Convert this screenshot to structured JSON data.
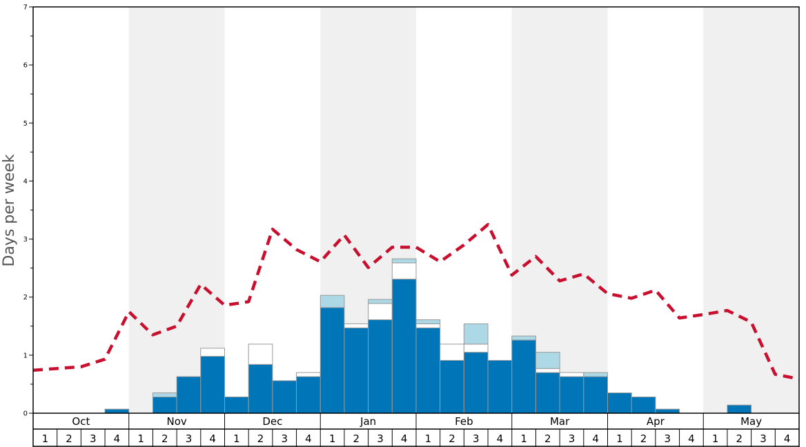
{
  "chart_data": {
    "type": "bar",
    "ylabel": "Days per week",
    "ylim": [
      0,
      7
    ],
    "y_ticks": [
      "0",
      "1",
      "2",
      "3",
      "4",
      "5",
      "6",
      "7"
    ],
    "months": [
      "Oct",
      "Nov",
      "Dec",
      "Jan",
      "Feb",
      "Mar",
      "Apr",
      "May"
    ],
    "week_labels": [
      "1",
      "2",
      "3",
      "4"
    ],
    "shaded_months": [
      "Nov",
      "Jan",
      "Mar",
      "May"
    ],
    "grid": false,
    "series": [
      {
        "values": [
          0,
          0,
          0,
          0.07,
          0,
          0.28,
          0.63,
          0.98,
          0.28,
          0.84,
          0.56,
          0.63,
          1.82,
          1.47,
          1.61,
          2.31,
          1.47,
          0.91,
          1.05,
          0.91,
          1.26,
          0.7,
          0.63,
          0.63,
          0.35,
          0.28,
          0.07,
          0,
          0,
          0.14,
          0,
          0
        ]
      },
      {
        "values": [
          0,
          0,
          0,
          0,
          0,
          0,
          0,
          0.14,
          0,
          0.35,
          0,
          0.07,
          0,
          0.07,
          0.28,
          0.28,
          0.07,
          0.28,
          0.14,
          0,
          0,
          0.07,
          0.07,
          0,
          0,
          0,
          0,
          0,
          0,
          0,
          0,
          0
        ]
      },
      {
        "values": [
          0,
          0,
          0,
          0,
          0,
          0.07,
          0,
          0,
          0,
          0,
          0,
          0,
          0.21,
          0,
          0.07,
          0.07,
          0.07,
          0,
          0.35,
          0,
          0.07,
          0.28,
          0,
          0.07,
          0,
          0,
          0,
          0,
          0,
          0,
          0,
          0
        ]
      },
      {
        "type": "line",
        "values": [
          0.74,
          0.77,
          0.8,
          0.93,
          1.75,
          1.35,
          1.5,
          2.22,
          1.86,
          1.92,
          3.17,
          2.82,
          2.61,
          3.07,
          2.51,
          2.86,
          2.86,
          2.61,
          2.9,
          3.25,
          2.38,
          2.7,
          2.28,
          2.4,
          2.06,
          1.98,
          2.12,
          1.64,
          1.7,
          1.77,
          1.57,
          0.67,
          0.59
        ]
      }
    ],
    "colors": {
      "bar_primary": "#0075b7",
      "bar_secondary": "#ffffff",
      "bar_tertiary": "#add8e6",
      "bar_edge": "#999999",
      "line": "#c8102e",
      "shade": "#f0f0f0"
    }
  }
}
